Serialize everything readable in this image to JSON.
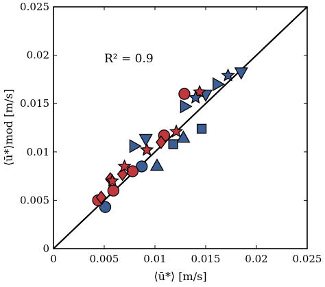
{
  "chart_data": {
    "type": "scatter",
    "title": "",
    "xlabel": "⟨ū*⟩ [m/s]",
    "ylabel": "⟨ū*⟩mod [m/s]",
    "xlim": [
      0,
      0.025
    ],
    "ylim": [
      0,
      0.025
    ],
    "xticks": [
      "0",
      "0.005",
      "0.01",
      "0.015",
      "0.02",
      "0.025"
    ],
    "yticks": [
      "0",
      "0.005",
      "0.01",
      "0.015",
      "0.02",
      "0.025"
    ],
    "grid": false,
    "annotation": "R² = 0.9",
    "reference_line": {
      "x": [
        0,
        0.025
      ],
      "y": [
        0,
        0.025
      ],
      "color": "#000000"
    },
    "colors": {
      "blue": "#3b5f94",
      "red": "#c0383e",
      "edge": "#000000"
    },
    "series": [
      {
        "marker": "circle",
        "color": "blue",
        "x": [
          0.0051,
          0.0087
        ],
        "y": [
          0.0043,
          0.0085
        ]
      },
      {
        "marker": "circle",
        "color": "red",
        "x": [
          0.0044,
          0.0059,
          0.0078,
          0.0109,
          0.0129
        ],
        "y": [
          0.005,
          0.006,
          0.008,
          0.0117,
          0.016
        ]
      },
      {
        "marker": "triangle-up",
        "color": "blue",
        "x": [
          0.0102,
          0.0128
        ],
        "y": [
          0.0086,
          0.0115
        ]
      },
      {
        "marker": "triangle-down",
        "color": "blue",
        "x": [
          0.0091,
          0.015,
          0.0185
        ],
        "y": [
          0.0113,
          0.0159,
          0.0182
        ]
      },
      {
        "marker": "triangle-right",
        "color": "blue",
        "x": [
          0.008,
          0.013,
          0.0162
        ],
        "y": [
          0.0106,
          0.0147,
          0.017
        ]
      },
      {
        "marker": "square",
        "color": "blue",
        "x": [
          0.0118,
          0.0146
        ],
        "y": [
          0.0108,
          0.0124
        ]
      },
      {
        "marker": "diamond",
        "color": "red",
        "x": [
          0.0047,
          0.0056,
          0.0068,
          0.0106
        ],
        "y": [
          0.0053,
          0.0072,
          0.0077,
          0.011
        ]
      },
      {
        "marker": "star",
        "color": "red",
        "x": [
          0.0058,
          0.007,
          0.0092,
          0.0121,
          0.0144
        ],
        "y": [
          0.007,
          0.0085,
          0.0102,
          0.0121,
          0.0162
        ]
      },
      {
        "marker": "star",
        "color": "blue",
        "x": [
          0.014,
          0.0172
        ],
        "y": [
          0.0156,
          0.0179
        ]
      }
    ]
  }
}
